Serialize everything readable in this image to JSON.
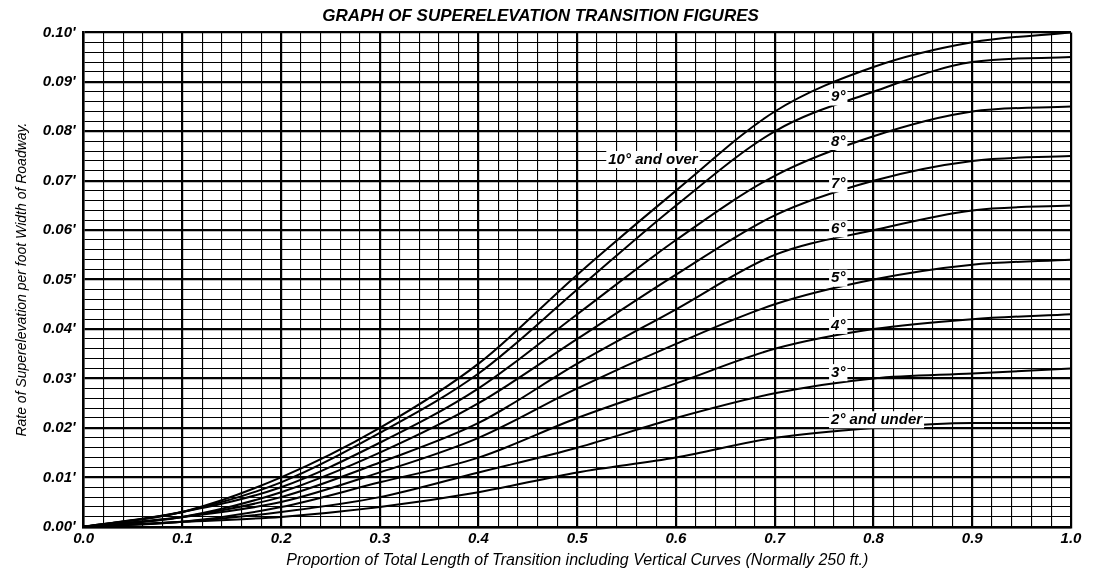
{
  "chart_data": {
    "type": "line",
    "title": "GRAPH OF SUPERELEVATION TRANSITION FIGURES",
    "xlabel": "Proportion of Total Length of Transition including Vertical Curves (Normally 250 ft.)",
    "ylabel": "Rate of Superelevation per foot Width of Roadway.",
    "x": [
      0,
      0.1,
      0.2,
      0.3,
      0.4,
      0.5,
      0.6,
      0.7,
      0.8,
      0.9,
      1.0
    ],
    "series": [
      {
        "name": "10° and over",
        "color": "#000000",
        "values": [
          0,
          0.003,
          0.01,
          0.02,
          0.033,
          0.051,
          0.068,
          0.084,
          0.093,
          0.098,
          0.1
        ]
      },
      {
        "name": "9°",
        "color": "#000000",
        "values": [
          0,
          0.003,
          0.009,
          0.019,
          0.031,
          0.048,
          0.065,
          0.08,
          0.088,
          0.094,
          0.095
        ]
      },
      {
        "name": "8°",
        "color": "#000000",
        "values": [
          0,
          0.003,
          0.008,
          0.017,
          0.028,
          0.043,
          0.058,
          0.071,
          0.079,
          0.084,
          0.085
        ]
      },
      {
        "name": "7°",
        "color": "#000000",
        "values": [
          0,
          0.002,
          0.007,
          0.015,
          0.025,
          0.038,
          0.051,
          0.063,
          0.07,
          0.074,
          0.075
        ]
      },
      {
        "name": "6°",
        "color": "#000000",
        "values": [
          0,
          0.002,
          0.006,
          0.013,
          0.021,
          0.033,
          0.044,
          0.055,
          0.06,
          0.064,
          0.065
        ]
      },
      {
        "name": "5°",
        "color": "#000000",
        "values": [
          0,
          0.002,
          0.005,
          0.011,
          0.018,
          0.028,
          0.037,
          0.045,
          0.05,
          0.053,
          0.054
        ]
      },
      {
        "name": "4°",
        "color": "#000000",
        "values": [
          0,
          0.001,
          0.004,
          0.009,
          0.014,
          0.022,
          0.029,
          0.036,
          0.04,
          0.042,
          0.043
        ]
      },
      {
        "name": "3°",
        "color": "#000000",
        "values": [
          0,
          0.001,
          0.003,
          0.006,
          0.011,
          0.016,
          0.022,
          0.027,
          0.03,
          0.031,
          0.032
        ]
      },
      {
        "name": "2° and under",
        "color": "#000000",
        "values": [
          0,
          0.001,
          0.002,
          0.004,
          0.007,
          0.011,
          0.014,
          0.018,
          0.02,
          0.021,
          0.021
        ]
      }
    ],
    "xlim": [
      0,
      1.0
    ],
    "ylim": [
      0,
      0.1
    ],
    "xticks": [
      {
        "value": 0,
        "label": "0.0"
      },
      {
        "value": 0.02,
        "label": null
      },
      {
        "value": 0.04,
        "label": null
      },
      {
        "value": 0.06,
        "label": null
      },
      {
        "value": 0.08,
        "label": null
      },
      {
        "value": 0.1,
        "label": "0.1"
      },
      {
        "value": 0.12,
        "label": null
      },
      {
        "value": 0.14,
        "label": null
      },
      {
        "value": 0.16,
        "label": null
      },
      {
        "value": 0.18,
        "label": null
      },
      {
        "value": 0.2,
        "label": "0.2"
      },
      {
        "value": 0.22,
        "label": null
      },
      {
        "value": 0.24,
        "label": null
      },
      {
        "value": 0.26,
        "label": null
      },
      {
        "value": 0.28,
        "label": null
      },
      {
        "value": 0.3,
        "label": "0.3"
      },
      {
        "value": 0.32,
        "label": null
      },
      {
        "value": 0.34,
        "label": null
      },
      {
        "value": 0.36,
        "label": null
      },
      {
        "value": 0.38,
        "label": null
      },
      {
        "value": 0.4,
        "label": "0.4"
      },
      {
        "value": 0.42,
        "label": null
      },
      {
        "value": 0.44,
        "label": null
      },
      {
        "value": 0.46,
        "label": null
      },
      {
        "value": 0.48,
        "label": null
      },
      {
        "value": 0.5,
        "label": "0.5"
      },
      {
        "value": 0.52,
        "label": null
      },
      {
        "value": 0.54,
        "label": null
      },
      {
        "value": 0.56,
        "label": null
      },
      {
        "value": 0.58,
        "label": null
      },
      {
        "value": 0.6,
        "label": "0.6"
      },
      {
        "value": 0.62,
        "label": null
      },
      {
        "value": 0.64,
        "label": null
      },
      {
        "value": 0.66,
        "label": null
      },
      {
        "value": 0.68,
        "label": null
      },
      {
        "value": 0.7,
        "label": "0.7"
      },
      {
        "value": 0.72,
        "label": null
      },
      {
        "value": 0.74,
        "label": null
      },
      {
        "value": 0.76,
        "label": null
      },
      {
        "value": 0.78,
        "label": null
      },
      {
        "value": 0.8,
        "label": "0.8"
      },
      {
        "value": 0.82,
        "label": null
      },
      {
        "value": 0.84,
        "label": null
      },
      {
        "value": 0.86,
        "label": null
      },
      {
        "value": 0.88,
        "label": null
      },
      {
        "value": 0.9,
        "label": "0.9"
      },
      {
        "value": 0.92,
        "label": null
      },
      {
        "value": 0.94,
        "label": null
      },
      {
        "value": 0.96,
        "label": null
      },
      {
        "value": 0.98,
        "label": null
      },
      {
        "value": 1.0,
        "label": "1.0"
      }
    ],
    "yticks": [
      {
        "value": 0,
        "label": "0.00'"
      },
      {
        "value": 0.002,
        "label": null
      },
      {
        "value": 0.004,
        "label": null
      },
      {
        "value": 0.006,
        "label": null
      },
      {
        "value": 0.008,
        "label": null
      },
      {
        "value": 0.01,
        "label": "0.01'"
      },
      {
        "value": 0.012,
        "label": null
      },
      {
        "value": 0.014,
        "label": null
      },
      {
        "value": 0.016,
        "label": null
      },
      {
        "value": 0.018,
        "label": null
      },
      {
        "value": 0.02,
        "label": "0.02'"
      },
      {
        "value": 0.022,
        "label": null
      },
      {
        "value": 0.024,
        "label": null
      },
      {
        "value": 0.026,
        "label": null
      },
      {
        "value": 0.028,
        "label": null
      },
      {
        "value": 0.03,
        "label": "0.03'"
      },
      {
        "value": 0.032,
        "label": null
      },
      {
        "value": 0.034,
        "label": null
      },
      {
        "value": 0.036,
        "label": null
      },
      {
        "value": 0.038,
        "label": null
      },
      {
        "value": 0.04,
        "label": "0.04'"
      },
      {
        "value": 0.042,
        "label": null
      },
      {
        "value": 0.044,
        "label": null
      },
      {
        "value": 0.046,
        "label": null
      },
      {
        "value": 0.048,
        "label": null
      },
      {
        "value": 0.05,
        "label": "0.05'"
      },
      {
        "value": 0.052,
        "label": null
      },
      {
        "value": 0.054,
        "label": null
      },
      {
        "value": 0.056,
        "label": null
      },
      {
        "value": 0.058,
        "label": null
      },
      {
        "value": 0.06,
        "label": "0.06'"
      },
      {
        "value": 0.062,
        "label": null
      },
      {
        "value": 0.064,
        "label": null
      },
      {
        "value": 0.066,
        "label": null
      },
      {
        "value": 0.068,
        "label": null
      },
      {
        "value": 0.07,
        "label": "0.07'"
      },
      {
        "value": 0.072,
        "label": null
      },
      {
        "value": 0.074,
        "label": null
      },
      {
        "value": 0.076,
        "label": null
      },
      {
        "value": 0.078,
        "label": null
      },
      {
        "value": 0.08,
        "label": "0.08'"
      },
      {
        "value": 0.082,
        "label": null
      },
      {
        "value": 0.084,
        "label": null
      },
      {
        "value": 0.086,
        "label": null
      },
      {
        "value": 0.088,
        "label": null
      },
      {
        "value": 0.09,
        "label": "0.09'"
      },
      {
        "value": 0.092,
        "label": null
      },
      {
        "value": 0.094,
        "label": null
      },
      {
        "value": 0.096,
        "label": null
      },
      {
        "value": 0.098,
        "label": null
      },
      {
        "value": 0.1,
        "label": "0.10'"
      }
    ],
    "grid": true,
    "legend": false,
    "marker": "none",
    "line_style": "solid"
  }
}
